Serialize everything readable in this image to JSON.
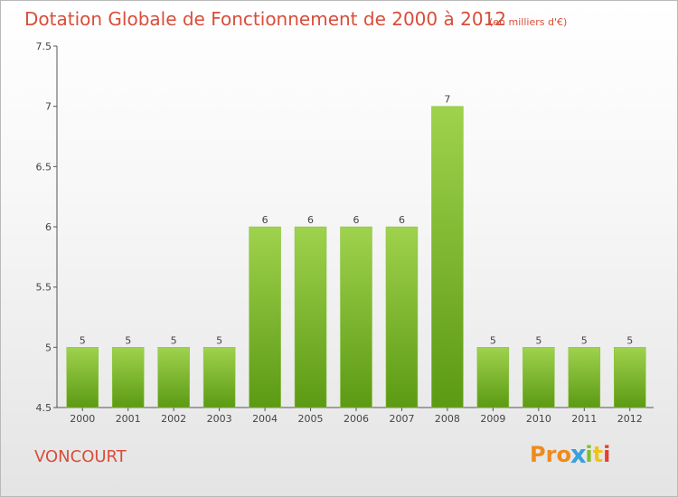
{
  "header": {
    "title": "Dotation Globale de Fonctionnement de 2000 à 2012",
    "unit": "(en milliers d'€)"
  },
  "footer": {
    "commune": "VONCOURT",
    "logo_letters": [
      "P",
      "r",
      "o",
      "x",
      "i",
      "t",
      "i"
    ]
  },
  "colors": {
    "title": "#d94d3a",
    "bar_top": "#9fd24d",
    "bar_bottom": "#5c9a14",
    "logo": [
      "#f08a1c",
      "#f08a1c",
      "#f08a1c",
      "#3aa0dc",
      "#7fbf2a",
      "#f0c419",
      "#e4402c"
    ]
  },
  "chart_data": {
    "type": "bar",
    "title": "Dotation Globale de Fonctionnement de 2000 à 2012",
    "xlabel": "",
    "ylabel": "",
    "categories": [
      "2000",
      "2001",
      "2002",
      "2003",
      "2004",
      "2005",
      "2006",
      "2007",
      "2008",
      "2009",
      "2010",
      "2011",
      "2012"
    ],
    "values": [
      5,
      5,
      5,
      5,
      6,
      6,
      6,
      6,
      7,
      5,
      5,
      5,
      5
    ],
    "ylim": [
      4.5,
      7.5
    ],
    "yticks": [
      "4.5",
      "5",
      "5.5",
      "6",
      "6.5",
      "7",
      "7.5"
    ],
    "grid": false,
    "legend": "none"
  }
}
